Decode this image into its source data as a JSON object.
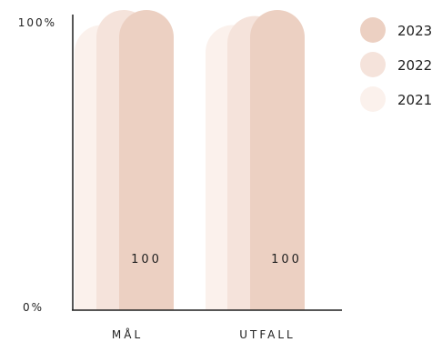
{
  "chart_data": {
    "type": "bar",
    "title": "",
    "xlabel": "",
    "ylabel": "",
    "categories": [
      "MÅL",
      "UTFALL"
    ],
    "ylim": [
      0,
      100
    ],
    "y_ticks": [
      "0%",
      "100%"
    ],
    "series": [
      {
        "name": "2021",
        "values": [
          95,
          95
        ],
        "color": "#fbf1ec"
      },
      {
        "name": "2022",
        "values": [
          100,
          98
        ],
        "color": "#f5e3db"
      },
      {
        "name": "2023",
        "values": [
          100,
          100
        ],
        "color": "#ecd0c2"
      }
    ],
    "data_labels": {
      "series": "2023",
      "values": [
        "100",
        "100"
      ]
    },
    "legend": {
      "placement": "top-right",
      "order": [
        "2023",
        "2022",
        "2021"
      ]
    },
    "grid": false
  }
}
